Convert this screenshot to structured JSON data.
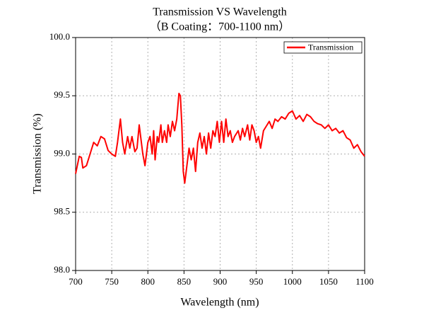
{
  "chart_data": {
    "type": "line",
    "title": "Transmission VS Wavelength",
    "subtitle": "（B Coating：700-1100 nm）",
    "xlabel": "Wavelength (nm)",
    "ylabel": "Transmission (%)",
    "x": [
      700,
      705,
      708,
      710,
      715,
      720,
      725,
      730,
      735,
      740,
      745,
      750,
      755,
      758,
      762,
      765,
      768,
      772,
      775,
      778,
      782,
      785,
      788,
      790,
      793,
      796,
      800,
      803,
      806,
      808,
      810,
      813,
      815,
      818,
      820,
      823,
      826,
      828,
      831,
      834,
      837,
      840,
      843,
      845,
      847,
      849,
      851,
      854,
      857,
      860,
      863,
      866,
      869,
      872,
      875,
      878,
      881,
      884,
      887,
      890,
      893,
      896,
      899,
      902,
      905,
      908,
      911,
      914,
      917,
      920,
      925,
      928,
      931,
      934,
      938,
      941,
      944,
      947,
      950,
      953,
      956,
      960,
      965,
      968,
      972,
      976,
      980,
      985,
      990,
      995,
      1000,
      1005,
      1010,
      1015,
      1020,
      1025,
      1030,
      1035,
      1040,
      1045,
      1050,
      1055,
      1060,
      1065,
      1070,
      1075,
      1080,
      1085,
      1090,
      1095,
      1100
    ],
    "series": [
      {
        "name": "Transmission",
        "color": "#ff0000",
        "values": [
          98.83,
          98.98,
          98.97,
          98.88,
          98.9,
          99.0,
          99.1,
          99.07,
          99.15,
          99.13,
          99.03,
          99.0,
          98.98,
          99.1,
          99.3,
          99.1,
          99.0,
          99.15,
          99.05,
          99.15,
          99.02,
          99.05,
          99.25,
          99.15,
          99.0,
          98.9,
          99.1,
          99.15,
          99.0,
          99.2,
          98.95,
          99.15,
          99.1,
          99.25,
          99.1,
          99.2,
          99.1,
          99.25,
          99.15,
          99.28,
          99.2,
          99.3,
          99.52,
          99.5,
          99.25,
          98.85,
          98.75,
          98.9,
          99.05,
          98.95,
          99.05,
          98.85,
          99.1,
          99.18,
          99.05,
          99.15,
          99.0,
          99.18,
          99.05,
          99.2,
          99.15,
          99.28,
          99.1,
          99.28,
          99.1,
          99.3,
          99.15,
          99.2,
          99.1,
          99.15,
          99.2,
          99.12,
          99.22,
          99.15,
          99.25,
          99.12,
          99.25,
          99.2,
          99.1,
          99.15,
          99.05,
          99.2,
          99.25,
          99.28,
          99.22,
          99.3,
          99.28,
          99.32,
          99.3,
          99.35,
          99.37,
          99.3,
          99.33,
          99.28,
          99.34,
          99.32,
          99.28,
          99.26,
          99.25,
          99.22,
          99.25,
          99.2,
          99.22,
          99.18,
          99.2,
          99.14,
          99.12,
          99.05,
          99.08,
          99.02,
          98.98
        ]
      }
    ],
    "xlim": [
      700,
      1100
    ],
    "xticks": [
      700,
      750,
      800,
      850,
      900,
      950,
      1000,
      1050,
      1100
    ],
    "ylim": [
      98.0,
      100.0
    ],
    "yticks": [
      {
        "value": 98.0,
        "label": "98.0"
      },
      {
        "value": 98.5,
        "label": "98.5"
      },
      {
        "value": 99.0,
        "label": "99.0"
      },
      {
        "value": 99.5,
        "label": "99.5"
      },
      {
        "value": 100.0,
        "label": "100.0"
      }
    ],
    "grid": true,
    "legend": "upper right"
  }
}
